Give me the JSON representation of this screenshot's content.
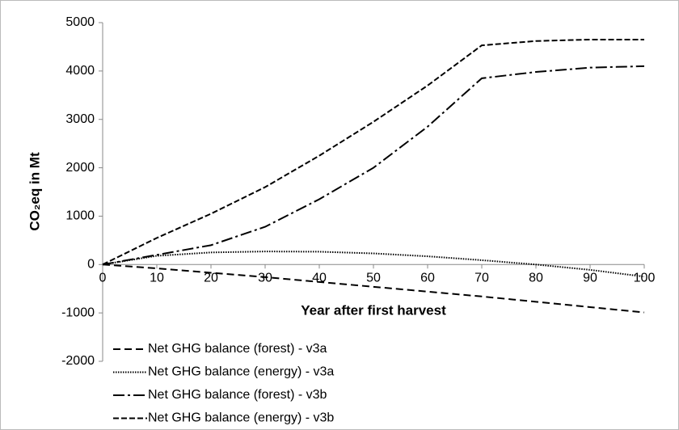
{
  "chart_data": {
    "type": "line",
    "x_label": "Year after first harvest",
    "y_label": "CO₂eq in Mt",
    "x": [
      0,
      10,
      20,
      30,
      40,
      50,
      60,
      70,
      80,
      90,
      100
    ],
    "series": [
      {
        "name": "Net GHG balance (forest) - v3a",
        "color": "#000000",
        "style": "dashed",
        "values": [
          0,
          -80,
          -170,
          -260,
          -360,
          -460,
          -560,
          -660,
          -770,
          -880,
          -990
        ]
      },
      {
        "name": "Net GHG balance (energy) - v3a",
        "color": "#000000",
        "style": "dotted",
        "values": [
          0,
          180,
          250,
          270,
          265,
          230,
          170,
          90,
          0,
          -110,
          -250
        ]
      },
      {
        "name": "Net GHG balance (forest) - v3b",
        "color": "#000000",
        "style": "dashdot",
        "values": [
          0,
          200,
          400,
          780,
          1350,
          2000,
          2850,
          3850,
          3980,
          4070,
          4100
        ]
      },
      {
        "name": "Net GHG balance (energy) - v3b",
        "color": "#000000",
        "style": "longdash",
        "values": [
          0,
          550,
          1050,
          1600,
          2250,
          2950,
          3700,
          4530,
          4620,
          4650,
          4650
        ]
      }
    ],
    "xlim": [
      0,
      100
    ],
    "xticks": [
      0,
      10,
      20,
      30,
      40,
      50,
      60,
      70,
      80,
      90,
      100
    ],
    "ylim": [
      -2000,
      5000
    ],
    "yticks": [
      -2000,
      -1000,
      0,
      1000,
      2000,
      3000,
      4000,
      5000
    ],
    "legend": "lower left"
  }
}
